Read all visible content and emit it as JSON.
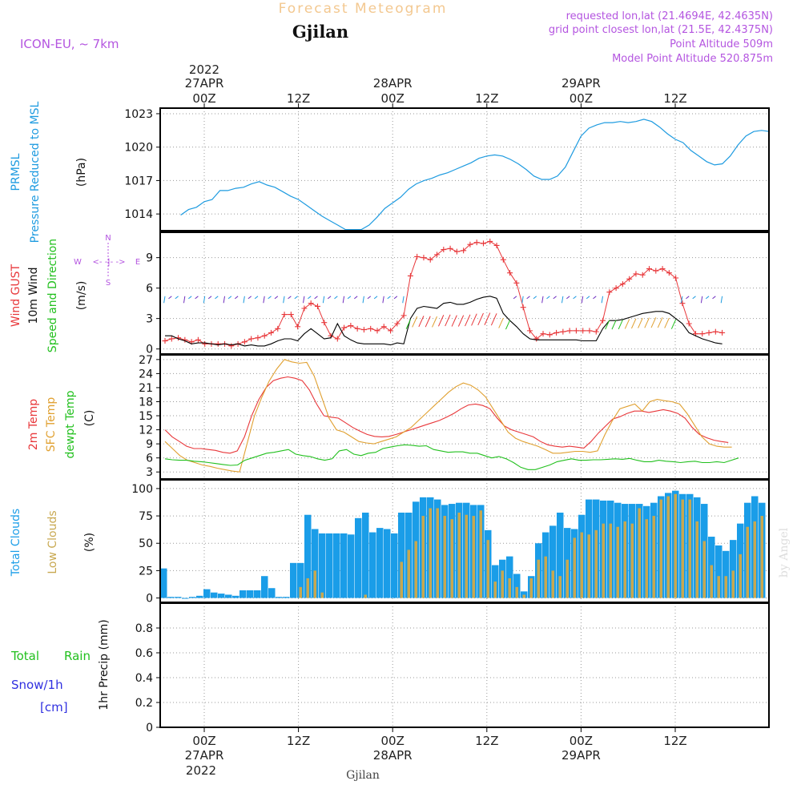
{
  "header": {
    "title": "Forecast Meteogram",
    "location": "Gjilan",
    "model": "ICON-EU, ~ 7km",
    "requested": "requested lon,lat (21.4694E, 42.4635N)",
    "gridpoint": "grid point closest lon,lat (21.5E, 42.4375N)",
    "point_alt": "Point Altitude 509m",
    "model_alt": "Model Point Altitude 520.875m"
  },
  "footer": {
    "location": "Gjilan",
    "credit": "by Angel"
  },
  "time_axis": {
    "top_year": "2022",
    "bottom_year": "2022",
    "ticks": [
      {
        "hour": "00Z",
        "date": "27APR"
      },
      {
        "hour": "12Z",
        "date": ""
      },
      {
        "hour": "00Z",
        "date": "28APR"
      },
      {
        "hour": "12Z",
        "date": ""
      },
      {
        "hour": "00Z",
        "date": "29APR"
      },
      {
        "hour": "12Z",
        "date": ""
      }
    ]
  },
  "panel_labels": {
    "pressure": [
      "PRMSL",
      "Pressure Reduced to MSL",
      "(hPa)"
    ],
    "wind": [
      "Wind GUST",
      "10m Wind",
      "Speed and Direction",
      "(m/s)"
    ],
    "compass": {
      "n": "N",
      "s": "S",
      "w": "W",
      "e": "E",
      "arrow": "<- -|- ->"
    },
    "temp": [
      "2m Temp",
      "SFC Temp",
      "dewpt Temp",
      "(C)"
    ],
    "cloud": [
      "Total Clouds",
      "Low Clouds",
      "(%)"
    ],
    "precip": [
      "Total",
      "Rain",
      "Snow/1h",
      "[cm]",
      "1hr Precip (mm)"
    ]
  },
  "colors": {
    "pressure": "#1e9be0",
    "gust": "#e8373a",
    "wind": "#000000",
    "temp2m": "#e8373a",
    "sfc": "#e0a030",
    "dewpt": "#22c01e",
    "total_clouds": "#1a9de8",
    "low_clouds": "#c8a850",
    "header_title": "#f3c890",
    "header_purple": "#b455e0",
    "snow": "#3030e0",
    "rain": "#22c01e"
  },
  "chart_data": [
    {
      "type": "line",
      "name": "pressure",
      "ylim": [
        1012.5,
        1023.5
      ],
      "yticks": [
        1014,
        1017,
        1020,
        1023
      ],
      "x": [
        -3,
        -2,
        -1,
        0,
        1,
        2,
        3,
        4,
        5,
        6,
        7,
        8,
        9,
        10,
        11,
        12,
        13,
        14,
        15,
        16,
        17,
        18,
        19,
        20,
        21,
        22,
        23,
        24,
        25,
        26,
        27,
        28,
        29,
        30,
        31,
        32,
        33,
        34,
        35,
        36,
        37,
        38,
        39,
        40,
        41,
        42,
        43,
        44,
        45,
        46,
        47,
        48,
        49,
        50,
        51,
        52,
        53,
        54,
        55,
        56,
        57,
        58,
        59,
        60,
        61,
        62,
        63,
        64,
        65,
        66,
        67,
        68,
        69,
        70,
        71,
        72
      ],
      "values": [
        1013.9,
        1014.4,
        1014.6,
        1015.1,
        1015.3,
        1016.1,
        1016.1,
        1016.3,
        1016.4,
        1016.7,
        1016.9,
        1016.6,
        1016.4,
        1016.0,
        1015.6,
        1015.3,
        1014.8,
        1014.3,
        1013.8,
        1013.4,
        1013.0,
        1012.6,
        1012.6,
        1012.6,
        1013.0,
        1013.7,
        1014.5,
        1015.0,
        1015.5,
        1016.2,
        1016.7,
        1017.0,
        1017.2,
        1017.5,
        1017.7,
        1018.0,
        1018.3,
        1018.6,
        1019.0,
        1019.2,
        1019.3,
        1019.2,
        1018.9,
        1018.5,
        1018.0,
        1017.4,
        1017.1,
        1017.1,
        1017.4,
        1018.2,
        1019.6,
        1021.0,
        1021.7,
        1022.0,
        1022.2,
        1022.2,
        1022.3,
        1022.2,
        1022.3,
        1022.5,
        1022.3,
        1021.8,
        1021.2,
        1020.7,
        1020.4,
        1019.7,
        1019.2,
        1018.7,
        1018.4,
        1018.5,
        1019.2,
        1020.2,
        1021.0,
        1021.4,
        1021.5,
        1021.4
      ]
    },
    {
      "type": "line",
      "name": "wind",
      "ylim": [
        -0.5,
        11.5
      ],
      "yticks": [
        0,
        3,
        6,
        9
      ],
      "gust": [
        0.8,
        1.0,
        1.1,
        0.9,
        0.7,
        0.9,
        0.5,
        0.5,
        0.5,
        0.5,
        0.3,
        0.5,
        0.7,
        1.0,
        1.1,
        1.3,
        1.6,
        2.0,
        3.4,
        3.4,
        2.2,
        4.0,
        4.5,
        4.2,
        2.6,
        1.3,
        1.0,
        2.1,
        2.3,
        2.0,
        1.9,
        2.0,
        1.8,
        2.2,
        1.8,
        2.5,
        3.3,
        7.2,
        9.1,
        9.0,
        8.8,
        9.3,
        9.8,
        9.9,
        9.6,
        9.7,
        10.3,
        10.5,
        10.4,
        10.6,
        10.2,
        8.8,
        7.5,
        6.5,
        4.1,
        1.8,
        1.0,
        1.5,
        1.4,
        1.6,
        1.7,
        1.8,
        1.8,
        1.8,
        1.8,
        1.7,
        2.8,
        5.6,
        6.0,
        6.4,
        6.9,
        7.4,
        7.3,
        7.9,
        7.7,
        7.9,
        7.5,
        7.0,
        4.5,
        2.5,
        1.5,
        1.5,
        1.6,
        1.7,
        1.6
      ],
      "speed": [
        1.3,
        1.3,
        1.0,
        0.8,
        0.5,
        0.6,
        0.6,
        0.5,
        0.4,
        0.5,
        0.4,
        0.5,
        0.3,
        0.4,
        0.3,
        0.3,
        0.5,
        0.8,
        1.0,
        1.0,
        0.8,
        1.5,
        2.0,
        1.5,
        1.0,
        1.1,
        2.5,
        1.3,
        0.9,
        0.6,
        0.5,
        0.5,
        0.5,
        0.5,
        0.4,
        0.6,
        0.5,
        3.0,
        4.0,
        4.2,
        4.1,
        4.0,
        4.5,
        4.6,
        4.4,
        4.4,
        4.6,
        4.9,
        5.1,
        5.2,
        5.0,
        3.5,
        2.8,
        2.2,
        1.5,
        1.0,
        0.9,
        0.9,
        0.9,
        0.9,
        0.9,
        0.9,
        0.9,
        0.8,
        0.8,
        0.8,
        2.0,
        2.8,
        2.8,
        2.9,
        3.1,
        3.3,
        3.5,
        3.6,
        3.7,
        3.7,
        3.5,
        3.0,
        2.5,
        1.6,
        1.3,
        1.0,
        0.8,
        0.6,
        0.5
      ]
    },
    {
      "type": "line",
      "name": "temperature",
      "ylim": [
        1.5,
        28
      ],
      "yticks": [
        3,
        6,
        9,
        12,
        15,
        18,
        21,
        24,
        27
      ],
      "t2m": [
        12.0,
        10.5,
        9.5,
        8.5,
        8.0,
        8.0,
        7.8,
        7.6,
        7.2,
        7.0,
        7.5,
        10.5,
        15.0,
        18.5,
        21.0,
        22.5,
        23.0,
        23.3,
        23.0,
        22.5,
        20.5,
        17.5,
        15.0,
        14.7,
        14.5,
        13.5,
        12.5,
        11.7,
        11.0,
        10.6,
        10.5,
        10.6,
        11.0,
        11.5,
        12.0,
        12.5,
        13.0,
        13.5,
        14.0,
        14.7,
        15.5,
        16.5,
        17.3,
        17.5,
        17.2,
        16.5,
        14.5,
        12.8,
        12.0,
        11.5,
        11.0,
        10.5,
        9.5,
        8.8,
        8.5,
        8.3,
        8.5,
        8.3,
        8.1,
        9.5,
        11.3,
        12.8,
        14.3,
        14.8,
        15.5,
        16.0,
        16.0,
        15.7,
        16.0,
        16.3,
        16.0,
        15.5,
        14.5,
        12.5,
        11.0,
        10.3,
        9.8,
        9.5,
        9.3
      ],
      "sfc": [
        9.5,
        8.0,
        6.5,
        5.5,
        5.0,
        4.5,
        4.2,
        3.8,
        3.5,
        3.2,
        3.0,
        9.0,
        15.0,
        19.0,
        22.5,
        25.0,
        27.0,
        26.5,
        26.2,
        26.4,
        23.5,
        19.0,
        14.5,
        12.0,
        11.5,
        10.5,
        9.5,
        9.2,
        9.0,
        9.5,
        10.0,
        10.5,
        11.5,
        12.5,
        14.0,
        15.5,
        17.0,
        18.5,
        20.0,
        21.2,
        22.0,
        21.5,
        20.5,
        19.0,
        16.5,
        14.0,
        11.5,
        10.2,
        9.5,
        9.0,
        8.5,
        7.8,
        7.0,
        7.0,
        7.2,
        7.4,
        7.4,
        7.2,
        7.5,
        11.0,
        14.0,
        16.5,
        17.0,
        17.5,
        16.0,
        18.0,
        18.5,
        18.2,
        18.0,
        17.5,
        15.5,
        13.0,
        10.5,
        9.0,
        8.5,
        8.3,
        8.3
      ],
      "dewpt": [
        5.8,
        5.6,
        5.5,
        5.5,
        5.3,
        5.2,
        5.0,
        4.8,
        4.6,
        4.4,
        4.5,
        5.5,
        6.0,
        6.5,
        7.0,
        7.2,
        7.5,
        7.8,
        6.8,
        6.5,
        6.3,
        5.8,
        5.5,
        5.8,
        7.5,
        7.8,
        6.8,
        6.5,
        7.0,
        7.2,
        8.0,
        8.3,
        8.6,
        8.8,
        8.7,
        8.5,
        8.6,
        7.8,
        7.5,
        7.2,
        7.3,
        7.3,
        7.0,
        7.0,
        6.5,
        6.0,
        6.3,
        5.8,
        5.0,
        4.0,
        3.5,
        3.5,
        4.0,
        4.5,
        5.2,
        5.5,
        5.8,
        5.5,
        5.5,
        5.6,
        5.6,
        5.7,
        5.8,
        5.7,
        5.9,
        5.5,
        5.2,
        5.2,
        5.5,
        5.3,
        5.2,
        5.0,
        5.2,
        5.3,
        5.0,
        5.0,
        5.2,
        5.0,
        5.5,
        6.0
      ]
    },
    {
      "type": "bar",
      "name": "clouds",
      "ylim": [
        -4,
        108
      ],
      "yticks": [
        0,
        25,
        50,
        75,
        100
      ],
      "total": [
        27,
        1,
        1,
        0,
        1,
        2,
        8,
        5,
        4,
        3,
        2,
        7,
        7,
        7,
        20,
        9,
        1,
        1,
        32,
        32,
        76,
        63,
        59,
        59,
        59,
        59,
        58,
        73,
        78,
        60,
        64,
        63,
        59,
        78,
        78,
        88,
        92,
        92,
        90,
        85,
        86,
        87,
        87,
        85,
        85,
        62,
        30,
        35,
        38,
        22,
        6,
        20,
        50,
        60,
        66,
        78,
        64,
        63,
        76,
        90,
        90,
        89,
        89,
        87,
        86,
        86,
        86,
        84,
        87,
        93,
        96,
        98,
        95,
        95,
        92,
        86,
        56,
        48,
        43,
        53,
        68,
        87,
        93,
        87,
        90
      ],
      "low": [
        0,
        0,
        0,
        0,
        0,
        0,
        0,
        0,
        0,
        0,
        0,
        0,
        0,
        0,
        0,
        0,
        0,
        0,
        0,
        10,
        18,
        25,
        5,
        0,
        0,
        0,
        0,
        0,
        3,
        0,
        0,
        0,
        0,
        33,
        44,
        52,
        75,
        82,
        82,
        75,
        72,
        78,
        76,
        75,
        80,
        53,
        15,
        25,
        18,
        10,
        3,
        18,
        35,
        38,
        25,
        20,
        35,
        55,
        60,
        58,
        62,
        68,
        68,
        65,
        70,
        68,
        82,
        72,
        75,
        90,
        93,
        95,
        90,
        90,
        70,
        52,
        30,
        20,
        20,
        25,
        40,
        65,
        70,
        75,
        72
      ]
    },
    {
      "type": "line",
      "name": "precip",
      "ylim": [
        0,
        1
      ],
      "yticks": [
        0,
        0.2,
        0.4,
        0.6,
        0.8
      ],
      "rain": [],
      "snow": []
    }
  ]
}
